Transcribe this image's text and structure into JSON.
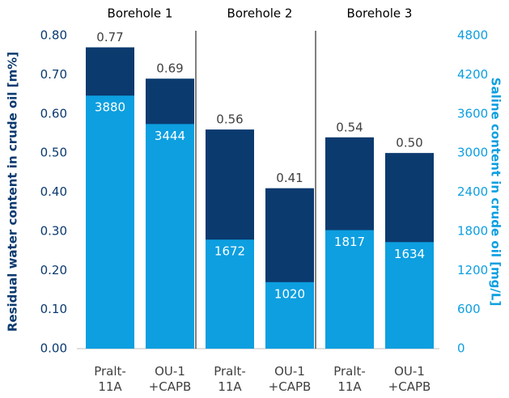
{
  "chart_data": {
    "type": "bar",
    "groups": [
      "Borehole 1",
      "Borehole 2",
      "Borehole 3"
    ],
    "categories": [
      "Pralt-\n11A",
      "OU-1\n+CAPB",
      "Pralt-\n11A",
      "OU-1\n+CAPB",
      "Pralt-\n11A",
      "OU-1\n+CAPB"
    ],
    "y_label": "Residual water content in crude oil [m%]",
    "y2_label": "Saline content in crude oil [mg/L]",
    "series": [
      {
        "name": "Residual water content",
        "color": "#0b3a6f",
        "axis": "y",
        "values": [
          0.77,
          0.69,
          0.56,
          0.41,
          0.54,
          0.5
        ],
        "value_labels": [
          "0.77",
          "0.69",
          "0.56",
          "0.41",
          "0.54",
          "0.50"
        ]
      },
      {
        "name": "Saline content",
        "color": "#0d9fe0",
        "axis": "y2",
        "values": [
          3880,
          3444,
          1672,
          1020,
          1817,
          1634
        ]
      }
    ],
    "ylim": [
      0,
      0.8
    ],
    "yticks": [
      {
        "value": 0,
        "label": "0.00"
      },
      {
        "value": 0.1,
        "label": "0.10"
      },
      {
        "value": 0.2,
        "label": "0.20"
      },
      {
        "value": 0.3,
        "label": "0.30"
      },
      {
        "value": 0.4,
        "label": "0.40"
      },
      {
        "value": 0.5,
        "label": "0.50"
      },
      {
        "value": 0.6,
        "label": "0.60"
      },
      {
        "value": 0.7,
        "label": "0.70"
      },
      {
        "value": 0.8,
        "label": "0.80"
      }
    ],
    "y2lim": [
      0,
      4800
    ],
    "y2ticks": [
      0,
      600,
      1200,
      1800,
      2400,
      3000,
      3600,
      4200,
      4800
    ]
  }
}
